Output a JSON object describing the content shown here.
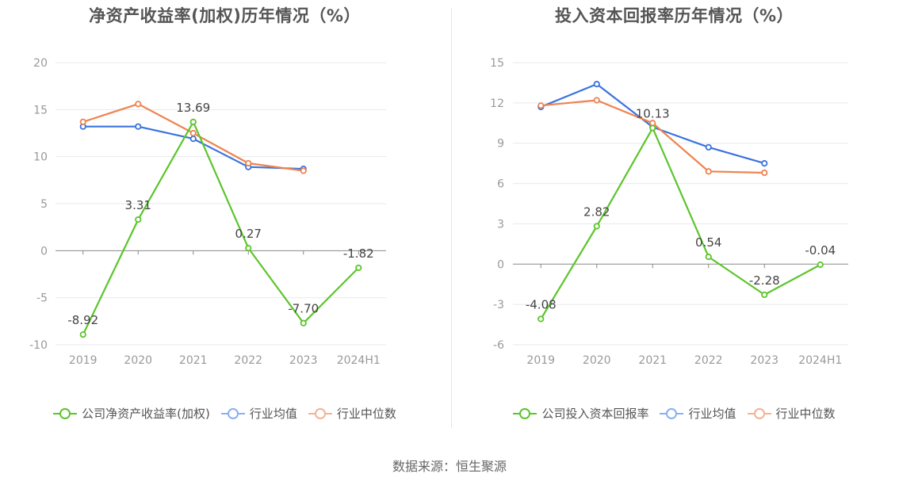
{
  "footer": "数据来源：恒生聚源",
  "colors": {
    "company": "#5cc52c",
    "avg": "#3a73de",
    "median": "#ee8350",
    "grid": "#e6e9ef",
    "axis": "#888888"
  },
  "legend_colors": {
    "company": "#5cc52c",
    "avg": "#8ab0f0",
    "median": "#f4b298"
  },
  "chart_data": [
    {
      "type": "line",
      "title": "净资产收益率(加权)历年情况（%）",
      "categories": [
        "2019",
        "2020",
        "2021",
        "2022",
        "2023",
        "2024H1"
      ],
      "ylim": [
        -10,
        20
      ],
      "yticks": [
        20,
        15,
        10,
        5,
        0,
        -5,
        -10
      ],
      "series": [
        {
          "name": "公司净资产收益率(加权)",
          "key": "company",
          "values": [
            -8.92,
            3.31,
            13.69,
            0.27,
            -7.7,
            -1.82
          ],
          "labels": [
            "-8.92",
            "3.31",
            "13.69",
            "0.27",
            "-7.70",
            "-1.82"
          ]
        },
        {
          "name": "行业均值",
          "key": "avg",
          "values": [
            13.2,
            13.2,
            11.9,
            8.9,
            8.7,
            null
          ]
        },
        {
          "name": "行业中位数",
          "key": "median",
          "values": [
            13.7,
            15.6,
            12.5,
            9.3,
            8.5,
            null
          ]
        }
      ]
    },
    {
      "type": "line",
      "title": "投入资本回报率历年情况（%）",
      "categories": [
        "2019",
        "2020",
        "2021",
        "2022",
        "2023",
        "2024H1"
      ],
      "ylim": [
        -6,
        15
      ],
      "yticks": [
        15,
        12,
        9,
        6,
        3,
        0,
        -3,
        -6
      ],
      "series": [
        {
          "name": "公司投入资本回报率",
          "key": "company",
          "values": [
            -4.08,
            2.82,
            10.13,
            0.54,
            -2.28,
            -0.04
          ],
          "labels": [
            "-4.08",
            "2.82",
            "10.13",
            "0.54",
            "-2.28",
            "-0.04"
          ]
        },
        {
          "name": "行业均值",
          "key": "avg",
          "values": [
            11.7,
            13.4,
            10.2,
            8.7,
            7.5,
            null
          ]
        },
        {
          "name": "行业中位数",
          "key": "median",
          "values": [
            11.8,
            12.2,
            10.5,
            6.9,
            6.8,
            null
          ]
        }
      ]
    }
  ]
}
